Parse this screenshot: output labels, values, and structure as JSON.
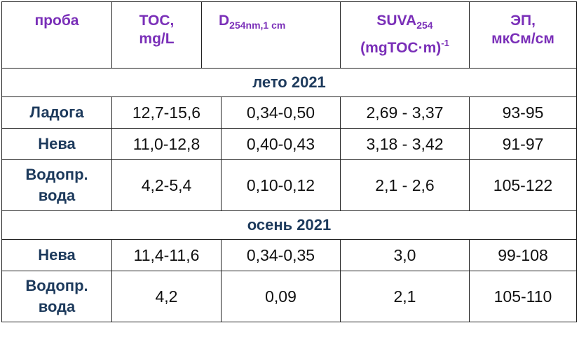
{
  "header": {
    "col1": "проба",
    "col2_line1": "TOC,",
    "col2_line2": "mg/L",
    "col3_main": "D",
    "col3_sub": "254nm,1 cm",
    "col4_main": "SUVA",
    "col4_sub": "254",
    "col4_line2": "(mgTOC·m)",
    "col4_sup": "-1",
    "col5_line1": "ЭП,",
    "col5_line2": "мкСм/см"
  },
  "sections": [
    {
      "title": "лето 2021",
      "rows": [
        {
          "name1": "Ладога",
          "name2": "",
          "toc": "12,7-15,6",
          "d": "0,34-0,50",
          "suva": "2,69 - 3,37",
          "ep": "93-95"
        },
        {
          "name1": "Нева",
          "name2": "",
          "toc": "11,0-12,8",
          "d": "0,40-0,43",
          "suva": "3,18 - 3,42",
          "ep": "91-97"
        },
        {
          "name1": "Водопр.",
          "name2": "вода",
          "toc": "4,2-5,4",
          "d": "0,10-0,12",
          "suva": "2,1 - 2,6",
          "ep": "105-122"
        }
      ]
    },
    {
      "title": "осень 2021",
      "rows": [
        {
          "name1": "Нева",
          "name2": "",
          "toc": "11,4-11,6",
          "d": "0,34-0,35",
          "suva": "3,0",
          "ep": "99-108"
        },
        {
          "name1": "Водопр.",
          "name2": "вода",
          "toc": "4,2",
          "d": "0,09",
          "suva": "2,1",
          "ep": "105-110"
        }
      ]
    }
  ]
}
